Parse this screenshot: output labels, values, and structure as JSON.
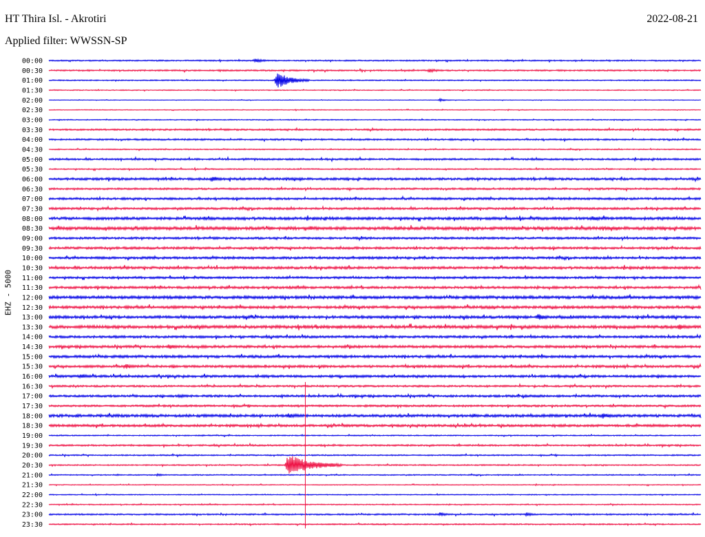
{
  "header": {
    "station": "HT Thira Isl. - Akrotiri",
    "date": "2022-08-21",
    "filter": "Applied filter: WWSSN-SP"
  },
  "channel_label": "EHZ - 5000",
  "colors": {
    "blue": "#0000e6",
    "red": "#ee1144"
  },
  "chart_data": {
    "type": "line",
    "subtype": "helicorder",
    "title": "HT Thira Isl. - Akrotiri",
    "date": "2022-08-21",
    "filter": "WWSSN-SP",
    "ylabel": "EHZ - 5000",
    "row_interval_minutes": 30,
    "row_labels": [
      "00:00",
      "00:30",
      "01:00",
      "01:30",
      "02:00",
      "02:30",
      "03:00",
      "03:30",
      "04:00",
      "04:30",
      "05:00",
      "05:30",
      "06:00",
      "06:30",
      "07:00",
      "07:30",
      "08:00",
      "08:30",
      "09:00",
      "09:30",
      "10:00",
      "10:30",
      "11:00",
      "11:30",
      "12:00",
      "12:30",
      "13:00",
      "13:30",
      "14:00",
      "14:30",
      "15:00",
      "15:30",
      "16:00",
      "16:30",
      "17:00",
      "17:30",
      "18:00",
      "18:30",
      "19:00",
      "19:30",
      "20:00",
      "20:30",
      "21:00",
      "21:30",
      "22:00",
      "22:30",
      "23:00",
      "23:30"
    ],
    "row_colors": [
      "blue",
      "red"
    ],
    "noise_level": [
      0.7,
      0.8,
      0.6,
      0.5,
      0.3,
      0.4,
      0.5,
      0.9,
      0.9,
      0.6,
      1.0,
      0.7,
      1.3,
      1.0,
      1.2,
      1.2,
      1.5,
      1.7,
      1.2,
      1.3,
      1.3,
      1.4,
      1.2,
      1.3,
      1.6,
      1.5,
      1.5,
      1.7,
      1.3,
      1.4,
      1.4,
      1.3,
      1.3,
      1.0,
      1.2,
      1.1,
      1.5,
      1.3,
      0.6,
      0.9,
      0.7,
      0.7,
      0.6,
      0.5,
      0.5,
      0.6,
      0.8,
      0.7
    ],
    "events": [
      {
        "row": "01:00",
        "minute": 10.5,
        "amplitude": 12,
        "duration_min": 1.5
      },
      {
        "row": "00:00",
        "minute": 9.5,
        "amplitude": 3,
        "duration_min": 1.0
      },
      {
        "row": "00:30",
        "minute": 17.5,
        "amplitude": 3,
        "duration_min": 1.0
      },
      {
        "row": "02:00",
        "minute": 18.0,
        "amplitude": 2,
        "duration_min": 0.8
      },
      {
        "row": "06:00",
        "minute": 7.5,
        "amplitude": 4,
        "duration_min": 1.2
      },
      {
        "row": "08:00",
        "minute": 25.0,
        "amplitude": 4,
        "duration_min": 1.0
      },
      {
        "row": "08:30",
        "minute": 12.0,
        "amplitude": 4,
        "duration_min": 0.8
      },
      {
        "row": "13:00",
        "minute": 22.5,
        "amplitude": 5,
        "duration_min": 1.0
      },
      {
        "row": "13:30",
        "minute": 29.0,
        "amplitude": 4,
        "duration_min": 1.2
      },
      {
        "row": "14:30",
        "minute": 5.5,
        "amplitude": 4,
        "duration_min": 1.0
      },
      {
        "row": "15:30",
        "minute": 3.5,
        "amplitude": 4,
        "duration_min": 1.0
      },
      {
        "row": "16:00",
        "minute": 1.5,
        "amplitude": 4,
        "duration_min": 0.8
      },
      {
        "row": "17:00",
        "minute": 6.0,
        "amplitude": 3,
        "duration_min": 0.8
      },
      {
        "row": "18:00",
        "minute": 11.0,
        "amplitude": 4,
        "duration_min": 1.5
      },
      {
        "row": "18:00",
        "minute": 25.5,
        "amplitude": 4,
        "duration_min": 1.2
      },
      {
        "row": "20:30",
        "minute": 11.0,
        "amplitude": 16,
        "duration_min": 2.5
      },
      {
        "row": "21:00",
        "minute": 5.0,
        "amplitude": 2,
        "duration_min": 0.6
      },
      {
        "row": "23:00",
        "minute": 18.0,
        "amplitude": 3,
        "duration_min": 0.8
      },
      {
        "row": "23:00",
        "minute": 22.0,
        "amplitude": 3,
        "duration_min": 0.8
      }
    ],
    "spike": {
      "from_row": "16:30",
      "to_row": "23:30",
      "minute": 11.8
    }
  }
}
